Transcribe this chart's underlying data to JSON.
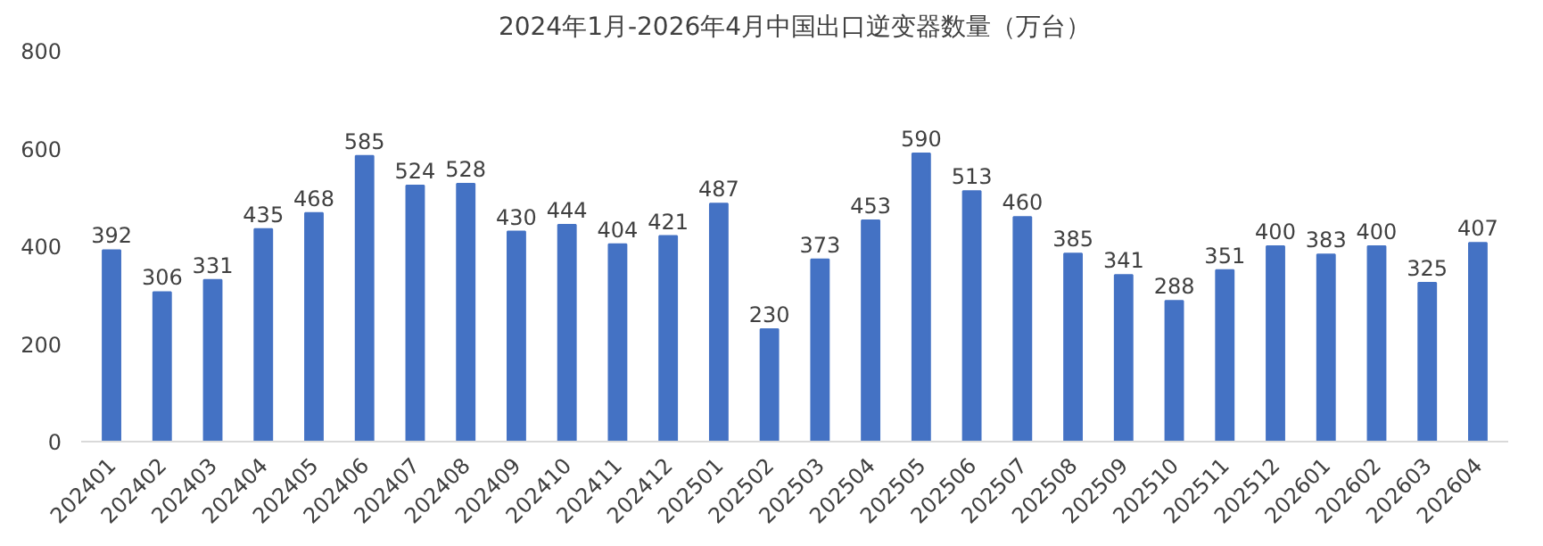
{
  "chart_data": {
    "type": "bar",
    "title": "2024年1月-2026年4月中国出口逆变器数量（万台）",
    "categories": [
      "202401",
      "202402",
      "202403",
      "202404",
      "202405",
      "202406",
      "202407",
      "202408",
      "202409",
      "202410",
      "202411",
      "202412",
      "202501",
      "202502",
      "202503",
      "202504",
      "202505",
      "202506",
      "202507",
      "202508",
      "202509",
      "202510",
      "202511",
      "202512",
      "202601",
      "202602",
      "202603",
      "202604"
    ],
    "values": [
      392,
      306,
      331,
      435,
      468,
      585,
      524,
      528,
      430,
      444,
      404,
      421,
      487,
      230,
      373,
      453,
      590,
      513,
      460,
      385,
      341,
      288,
      351,
      400,
      383,
      400,
      325,
      407
    ],
    "color": "#4472c4",
    "ylim": [
      0,
      800
    ],
    "yticks": [
      0,
      200,
      400,
      600,
      800
    ],
    "grid": false,
    "data_labels": true
  }
}
